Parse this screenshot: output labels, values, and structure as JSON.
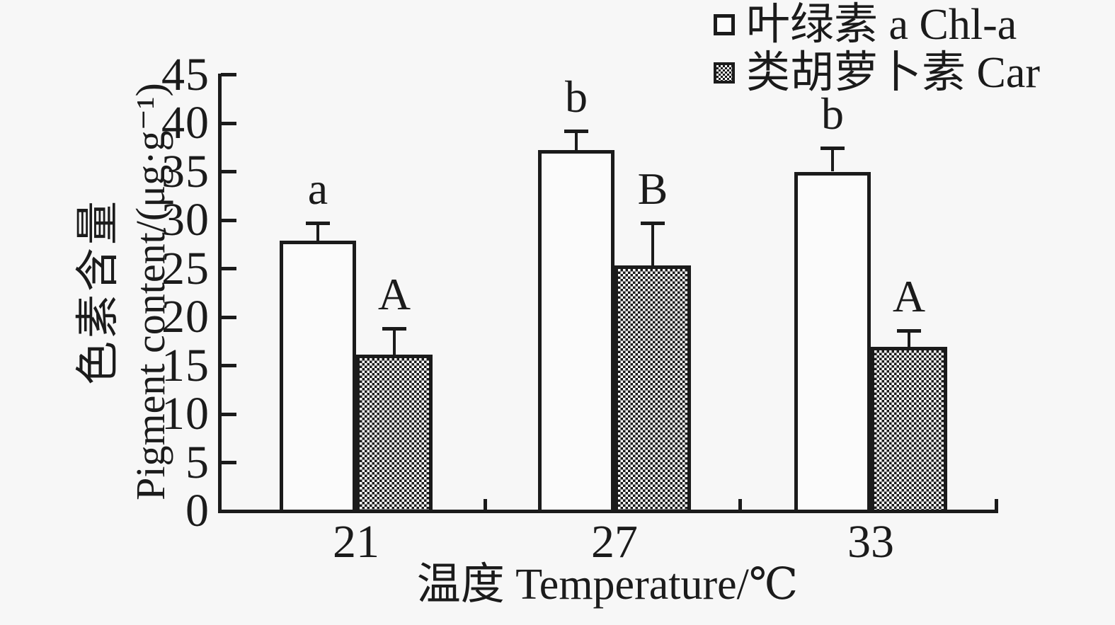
{
  "figure": {
    "background": "#f7f7f7",
    "ink": "#1b1b1b"
  },
  "chart_data": {
    "type": "bar",
    "title": "",
    "categories": [
      "21",
      "27",
      "33"
    ],
    "series": [
      {
        "name": "叶绿素 a Chl-a",
        "marker": "open-square",
        "fill": "white",
        "values": [
          27.9,
          37.2,
          35.0
        ],
        "errors": [
          1.6,
          1.8,
          2.2
        ],
        "sig_letters": [
          "a",
          "b",
          "b"
        ]
      },
      {
        "name": "类胡萝卜素 Car",
        "marker": "checkered-square",
        "fill": "checkerboard-hatch",
        "values": [
          16.1,
          25.3,
          16.9
        ],
        "errors": [
          2.5,
          4.2,
          1.5
        ],
        "sig_letters": [
          "A",
          "B",
          "A"
        ]
      }
    ],
    "xlabel": "温度 Temperature/℃",
    "ylabel_zh": "色素含量",
    "ylabel_en": "Pigment content/(μg·g⁻¹)",
    "ylim": [
      0,
      45
    ],
    "ytick_step": 5,
    "yticks": [
      0,
      5,
      10,
      15,
      20,
      25,
      30,
      35,
      40,
      45
    ],
    "error_bars": "upper-only",
    "grid": false,
    "legend_position": "top-right"
  }
}
